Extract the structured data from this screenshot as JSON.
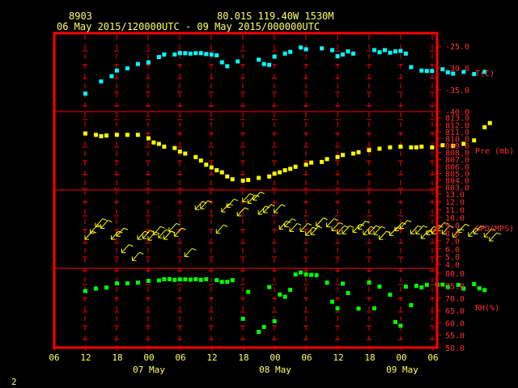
{
  "header": {
    "station_id": "8903",
    "location": "80.01S  119.40W  1530M",
    "date_range": "06 May 2015/120000UTC - 09 May 2015/000000UTC"
  },
  "footer": {
    "page_number": "2"
  },
  "colors": {
    "background": "#000000",
    "frame": "#ff0000",
    "axis_text": "#ff3030",
    "header_text": "#ffff66",
    "temperature": "#00ffff",
    "pressure": "#ffff00",
    "wind": "#ffff00",
    "humidity": "#00ff00"
  },
  "chart_data": [
    {
      "type": "scatter",
      "panel": "temperature",
      "ylabel": "T(C)",
      "ylim": [
        -40,
        -22
      ],
      "yticks": [
        "-25.0",
        "-30.0",
        "-35.0",
        "-40.0"
      ],
      "ytick_values": [
        -25,
        -30,
        -35,
        -40
      ],
      "x": [
        0,
        3,
        5,
        6,
        8,
        10,
        12,
        14,
        15,
        17,
        18,
        19,
        20,
        21,
        22,
        23,
        24,
        25,
        26,
        27,
        29,
        33,
        34,
        35,
        36,
        38,
        39,
        41,
        42,
        45,
        47,
        48,
        49,
        50,
        51,
        55,
        56,
        57,
        58,
        59,
        60,
        61,
        62,
        64,
        65,
        66,
        68,
        69,
        70,
        72,
        74,
        76
      ],
      "values": [
        -35.8,
        -33.0,
        -31.8,
        -30.5,
        -30.0,
        -29.0,
        -28.6,
        -27.4,
        -26.8,
        -26.8,
        -26.5,
        -26.5,
        -26.6,
        -26.5,
        -26.5,
        -26.7,
        -26.8,
        -27.0,
        -28.6,
        -29.5,
        -28.4,
        -28.0,
        -29.0,
        -29.2,
        -27.3,
        -26.6,
        -26.2,
        -25.2,
        -25.6,
        -25.4,
        -25.8,
        -27.2,
        -26.8,
        -26.1,
        -26.6,
        -25.8,
        -26.3,
        -25.8,
        -26.4,
        -26.1,
        -26.0,
        -26.6,
        -29.7,
        -30.5,
        -30.6,
        -30.6,
        -30.2,
        -30.9,
        -31.2,
        -30.8,
        -31.3,
        -30.8
      ]
    },
    {
      "type": "scatter",
      "panel": "pressure",
      "ylabel": "Pre (mb)",
      "ylim": [
        802.6,
        813.9
      ],
      "yticks": [
        "813.0",
        "812.0",
        "811.0",
        "810.0",
        "809.0",
        "808.0",
        "807.0",
        "806.0",
        "805.0",
        "804.0",
        "803.0"
      ],
      "ytick_values": [
        813,
        812,
        811,
        810,
        809,
        808,
        807,
        806,
        805,
        804,
        803
      ],
      "x": [
        0,
        2,
        3,
        4,
        6,
        8,
        10,
        12,
        13,
        14,
        15,
        17,
        18,
        19,
        21,
        22,
        23,
        24,
        25,
        26,
        27,
        28,
        30,
        31,
        33,
        35,
        36,
        37,
        38,
        39,
        40,
        42,
        43,
        45,
        46,
        48,
        49,
        51,
        52,
        54,
        56,
        58,
        60,
        62,
        63,
        64,
        66,
        68,
        70,
        72,
        74,
        76,
        77
      ],
      "values": [
        810.8,
        810.6,
        810.4,
        810.5,
        810.6,
        810.6,
        810.6,
        810.1,
        809.5,
        809.3,
        808.9,
        808.7,
        808.2,
        807.9,
        807.4,
        806.9,
        806.3,
        805.9,
        805.5,
        805.2,
        804.6,
        804.2,
        804.0,
        804.1,
        804.4,
        804.6,
        805.0,
        805.2,
        805.5,
        805.7,
        806.0,
        806.3,
        806.6,
        806.7,
        807.1,
        807.4,
        807.7,
        807.9,
        808.1,
        808.4,
        808.6,
        808.8,
        808.9,
        808.8,
        808.8,
        808.9,
        808.8,
        809.1,
        809.0,
        809.3,
        809.8,
        811.7,
        812.3
      ]
    },
    {
      "type": "barbs",
      "panel": "wind speed",
      "ylabel": "SPD(MPS)",
      "ylim": [
        3.5,
        13.5
      ],
      "yticks": [
        "13.0",
        "12.0",
        "11.0",
        "10.0",
        "9.0",
        "8.0",
        "7.0",
        "6.0",
        "5.0",
        "4.0"
      ],
      "ytick_values": [
        13,
        12,
        11,
        10,
        9,
        8,
        7,
        6,
        5,
        4
      ],
      "x": [
        0,
        1,
        2,
        3,
        5,
        6,
        7,
        9,
        10,
        11,
        12,
        13,
        14,
        15,
        16,
        17,
        19,
        21,
        22,
        25,
        26,
        27,
        29,
        30,
        31,
        32,
        33,
        34,
        36,
        37,
        38,
        39,
        41,
        42,
        43,
        44,
        46,
        47,
        48,
        49,
        51,
        52,
        53,
        54,
        55,
        56,
        58,
        59,
        60,
        62,
        63,
        64,
        65,
        66,
        67,
        68,
        70,
        71,
        73,
        74,
        76,
        77
      ],
      "values": [
        7.2,
        8.0,
        8.8,
        8.6,
        7.2,
        7.6,
        5.5,
        4.5,
        7.2,
        7.3,
        7.1,
        7.8,
        7.4,
        7.2,
        8.2,
        7.6,
        5.0,
        11.0,
        11.1,
        8.0,
        10.7,
        11.3,
        10.2,
        12.0,
        11.8,
        12.2,
        10.4,
        10.6,
        10.6,
        8.5,
        8.8,
        8.2,
        8.2,
        7.7,
        7.8,
        8.9,
        8.8,
        8.3,
        7.9,
        7.9,
        8.1,
        8.5,
        7.8,
        7.9,
        7.8,
        7.2,
        7.7,
        8.3,
        8.6,
        7.9,
        7.9,
        7.3,
        7.8,
        7.9,
        8.3,
        7.9,
        7.5,
        8.1,
        7.6,
        7.9,
        7.5,
        7.0
      ]
    },
    {
      "type": "scatter",
      "panel": "relative humidity",
      "ylabel": "RH(%)",
      "ylim": [
        50,
        82
      ],
      "yticks": [
        "80.0",
        "75.0",
        "70.0",
        "65.0",
        "60.0",
        "55.0",
        "50.0"
      ],
      "ytick_values": [
        80,
        75,
        70,
        65,
        60,
        55,
        50
      ],
      "x": [
        0,
        2,
        4,
        6,
        8,
        10,
        12,
        14,
        15,
        16,
        17,
        18,
        19,
        20,
        21,
        22,
        23,
        25,
        26,
        27,
        28,
        30,
        31,
        33,
        34,
        35,
        36,
        37,
        38,
        39,
        40,
        41,
        42,
        43,
        44,
        46,
        47,
        48,
        49,
        50,
        52,
        54,
        55,
        56,
        58,
        59,
        60,
        61,
        62,
        63,
        64,
        65,
        67,
        68,
        69,
        71,
        72,
        74,
        75,
        76
      ],
      "values": [
        73.0,
        74.0,
        74.4,
        76.1,
        76.1,
        76.4,
        77.1,
        77.3,
        77.8,
        77.8,
        77.5,
        77.7,
        77.7,
        77.6,
        77.8,
        77.5,
        77.8,
        77.4,
        76.7,
        76.7,
        77.4,
        61.8,
        72.7,
        56.5,
        58.5,
        74.6,
        60.8,
        71.6,
        70.7,
        73.5,
        79.7,
        80.5,
        79.7,
        79.5,
        79.4,
        76.4,
        68.7,
        66.0,
        76.0,
        72.2,
        65.9,
        76.5,
        66.0,
        74.8,
        71.5,
        60.5,
        59.0,
        74.8,
        67.3,
        75.1,
        74.5,
        75.5,
        75.5,
        75.6,
        74.6,
        75.5,
        74.0,
        75.8,
        74.1,
        73.4
      ]
    }
  ],
  "x_axis": {
    "hour_ticks": [
      "06",
      "12",
      "18",
      "00",
      "06",
      "12",
      "18",
      "00",
      "06",
      "12",
      "18",
      "00",
      "06"
    ],
    "date_labels": [
      "07 May",
      "08 May",
      "09 May"
    ],
    "grid": true
  }
}
